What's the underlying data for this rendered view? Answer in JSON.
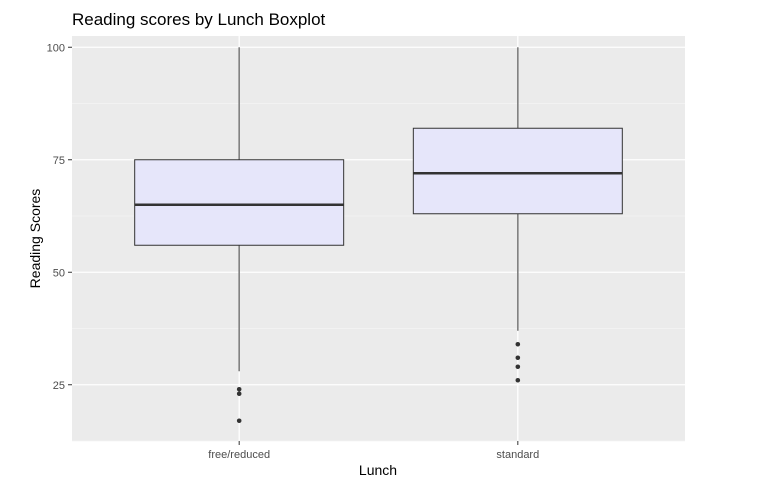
{
  "chart_data": {
    "type": "boxplot",
    "title": "Reading scores by Lunch Boxplot",
    "xlabel": "Lunch",
    "ylabel": "Reading Scores",
    "categories": [
      "free/reduced",
      "standard"
    ],
    "ylim": [
      12.5,
      102.5
    ],
    "yticks": [
      25,
      50,
      75,
      100
    ],
    "grid": true,
    "boxes": [
      {
        "category": "free/reduced",
        "whisker_low": 28,
        "q1": 56,
        "median": 65,
        "q3": 75,
        "whisker_high": 100,
        "outliers": [
          24,
          23,
          17
        ]
      },
      {
        "category": "standard",
        "whisker_low": 37,
        "q1": 63,
        "median": 72,
        "q3": 82,
        "whisker_high": 100,
        "outliers": [
          34,
          31,
          29,
          26
        ]
      }
    ],
    "colors": {
      "panel": "#ebebeb",
      "grid_major": "#ffffff",
      "box_fill": "#e6e6fa",
      "box_stroke": "#333333",
      "whisker": "#7f7f7f",
      "outlier": "#333333"
    }
  }
}
